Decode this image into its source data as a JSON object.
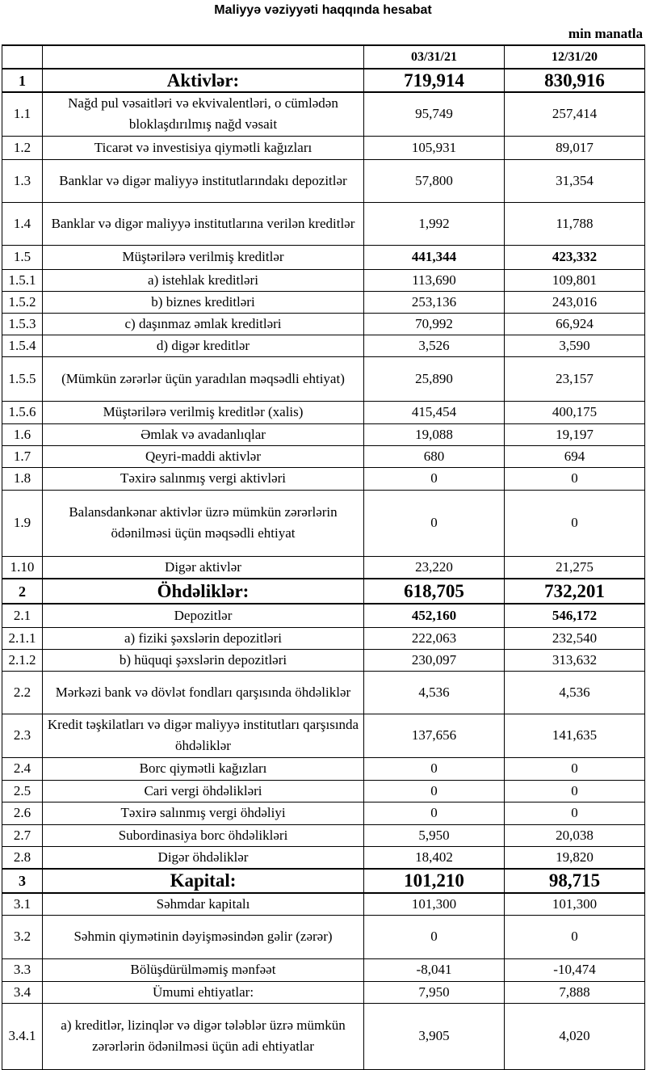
{
  "title": "Maliyyə vəziyyəti haqqında hesabat",
  "unit": "min manatla",
  "columns": [
    "",
    "",
    "03/31/21",
    "12/31/20"
  ],
  "rows": [
    {
      "no": "1",
      "label": "Aktivlər:",
      "v1": "719,914",
      "v2": "830,916",
      "style": "section"
    },
    {
      "no": "1.1",
      "label": "Nağd pul vəsaitləri və  ekvivalentləri, o cümlədən bloklaşdırılmış nağd vəsait",
      "v1": "95,749",
      "v2": "257,414"
    },
    {
      "no": "1.2",
      "label": "Ticarət və investisiya qiymətli kağızları",
      "v1": "105,931",
      "v2": "89,017"
    },
    {
      "no": "1.3",
      "label": "Banklar və digər maliyyə institutlarındakı depozitlər",
      "v1": "57,800",
      "v2": "31,354"
    },
    {
      "no": "1.4",
      "label": "Banklar və digər maliyyə institutlarına verilən kreditlər",
      "v1": "1,992",
      "v2": "11,788"
    },
    {
      "no": "1.5",
      "label": "Müştərilərə verilmiş kreditlər",
      "v1": "441,344",
      "v2": "423,332",
      "style": "bold"
    },
    {
      "no": "1.5.1",
      "label": "a) istehlak kreditləri",
      "v1": "113,690",
      "v2": "109,801"
    },
    {
      "no": "1.5.2",
      "label": "b) biznes kreditləri",
      "v1": "253,136",
      "v2": "243,016"
    },
    {
      "no": "1.5.3",
      "label": "c) daşınmaz əmlak kreditləri",
      "v1": "70,992",
      "v2": "66,924"
    },
    {
      "no": "1.5.4",
      "label": "d) digər kreditlər",
      "v1": "3,526",
      "v2": "3,590"
    },
    {
      "no": "1.5.5",
      "label": "(Mümkün zərərlər üçün yaradılan məqsədli ehtiyat)",
      "v1": "25,890",
      "v2": "23,157"
    },
    {
      "no": "1.5.6",
      "label": "Müştərilərə verilmiş kreditlər (xalis)",
      "v1": "415,454",
      "v2": "400,175"
    },
    {
      "no": "1.6",
      "label": "Əmlak və avadanlıqlar",
      "v1": "19,088",
      "v2": "19,197"
    },
    {
      "no": "1.7",
      "label": "Qeyri-maddi aktivlər",
      "v1": "680",
      "v2": "694"
    },
    {
      "no": "1.8",
      "label": "Təxirə salınmış vergi aktivləri",
      "v1": "0",
      "v2": "0"
    },
    {
      "no": "1.9",
      "label": "Balansdankənar aktivlər üzrə mümkün zərərlərin ödənilməsi üçün məqsədli ehtiyat",
      "v1": "0",
      "v2": "0"
    },
    {
      "no": "1.10",
      "label": "Digər aktivlər",
      "v1": "23,220",
      "v2": "21,275"
    },
    {
      "no": "2",
      "label": "Öhdəliklər:",
      "v1": "618,705",
      "v2": "732,201",
      "style": "section"
    },
    {
      "no": "2.1",
      "label": "Depozitlər",
      "v1": "452,160",
      "v2": "546,172",
      "style": "bold"
    },
    {
      "no": "2.1.1",
      "label": "a) fiziki şəxslərin depozitləri",
      "v1": "222,063",
      "v2": "232,540"
    },
    {
      "no": "2.1.2",
      "label": "b) hüquqi şəxslərin depozitləri",
      "v1": "230,097",
      "v2": "313,632"
    },
    {
      "no": "2.2",
      "label": "Mərkəzi bank və dövlət fondları qarşısında öhdəliklər",
      "v1": "4,536",
      "v2": "4,536"
    },
    {
      "no": "2.3",
      "label": "Kredit təşkilatları və digər maliyyə institutları qarşısında öhdəliklər",
      "v1": "137,656",
      "v2": "141,635"
    },
    {
      "no": "2.4",
      "label": "Borc qiymətli kağızları",
      "v1": "0",
      "v2": "0"
    },
    {
      "no": "2.5",
      "label": "Cari vergi öhdəlikləri",
      "v1": "0",
      "v2": "0"
    },
    {
      "no": "2.6",
      "label": "Təxirə salınmış vergi öhdəliyi",
      "v1": "0",
      "v2": "0"
    },
    {
      "no": "2.7",
      "label": "Subordinasiya borc öhdəlikləri",
      "v1": "5,950",
      "v2": "20,038"
    },
    {
      "no": "2.8",
      "label": "Digər öhdəliklər",
      "v1": "18,402",
      "v2": "19,820"
    },
    {
      "no": "3",
      "label": "Kapital:",
      "v1": "101,210",
      "v2": "98,715",
      "style": "section"
    },
    {
      "no": "3.1",
      "label": "Səhmdar kapitalı",
      "v1": "101,300",
      "v2": "101,300"
    },
    {
      "no": "3.2",
      "label": "Səhmin qiymətinin dəyişməsindən gəlir (zərər)",
      "v1": "0",
      "v2": "0"
    },
    {
      "no": "3.3",
      "label": "Bölüşdürülməmiş mənfəət",
      "v1": "-8,041",
      "v2": "-10,474"
    },
    {
      "no": "3.4",
      "label": "Ümumi ehtiyatlar:",
      "v1": "7,950",
      "v2": "7,888"
    },
    {
      "no": "3.4.1",
      "label": "a) kreditlər, lizinqlər və digər tələblər üzrə mümkün zərərlərin ödənilməsi üçün adi ehtiyatlar",
      "v1": "3,905",
      "v2": "4,020"
    }
  ]
}
